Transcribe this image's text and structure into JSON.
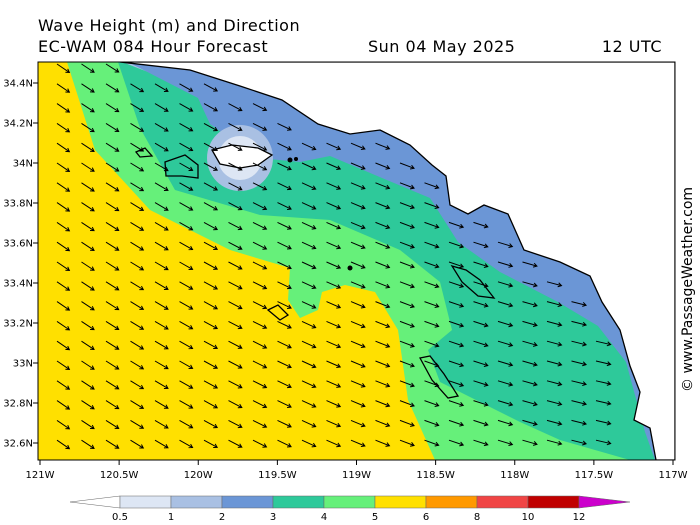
{
  "header": {
    "title": "Wave Height (m) and Direction",
    "model": "EC-WAM 084 Hour Forecast",
    "date": "Sun 04 May 2025",
    "time": "12 UTC"
  },
  "map": {
    "lon_labels": [
      "121W",
      "120.5W",
      "120W",
      "119.5W",
      "119W",
      "118.5W",
      "118W",
      "117.5W",
      "117W"
    ],
    "lat_labels": [
      "34.4N",
      "34.2N",
      "34N",
      "33.8N",
      "33.6N",
      "33.4N",
      "33.2N",
      "33N",
      "32.8N",
      "32.6N"
    ],
    "credit": "© www.PassageWeather.com"
  },
  "colorbar": {
    "labels": [
      "0.5",
      "1",
      "2",
      "3",
      "4",
      "5",
      "6",
      "8",
      "10",
      "12"
    ],
    "colors": [
      "#ffffff",
      "#dde6f4",
      "#a9c0e3",
      "#6b96d6",
      "#2ec99a",
      "#66f07a",
      "#ffe000",
      "#ff9900",
      "#f04545",
      "#c00000",
      "#cc00cc"
    ]
  }
}
